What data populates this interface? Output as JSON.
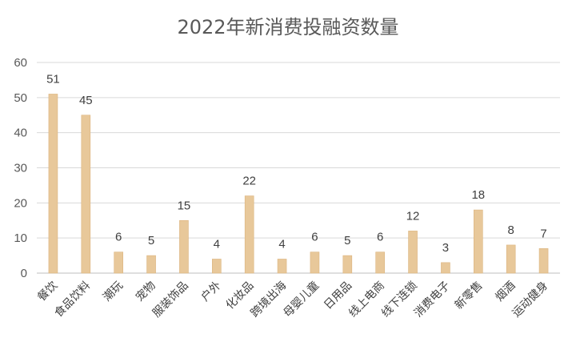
{
  "chart_data": {
    "type": "bar",
    "title": "2022年新消费投融资数量",
    "categories": [
      "餐饮",
      "食品饮料",
      "潮玩",
      "宠物",
      "服装饰品",
      "户外",
      "化妆品",
      "跨境出海",
      "母婴儿童",
      "日用品",
      "线上电商",
      "线下连锁",
      "消费电子",
      "新零售",
      "烟酒",
      "运动健身"
    ],
    "values": [
      51,
      45,
      6,
      5,
      15,
      4,
      22,
      4,
      6,
      5,
      6,
      12,
      3,
      18,
      8,
      7
    ],
    "ylim": [
      0,
      60
    ],
    "yticks": [
      0,
      10,
      20,
      30,
      40,
      50,
      60
    ],
    "grid": true,
    "legend": "none",
    "colors": {
      "bar": "#e8c89a",
      "bar_stroke": "#dcb47e",
      "grid": "#d9d9d9"
    }
  }
}
